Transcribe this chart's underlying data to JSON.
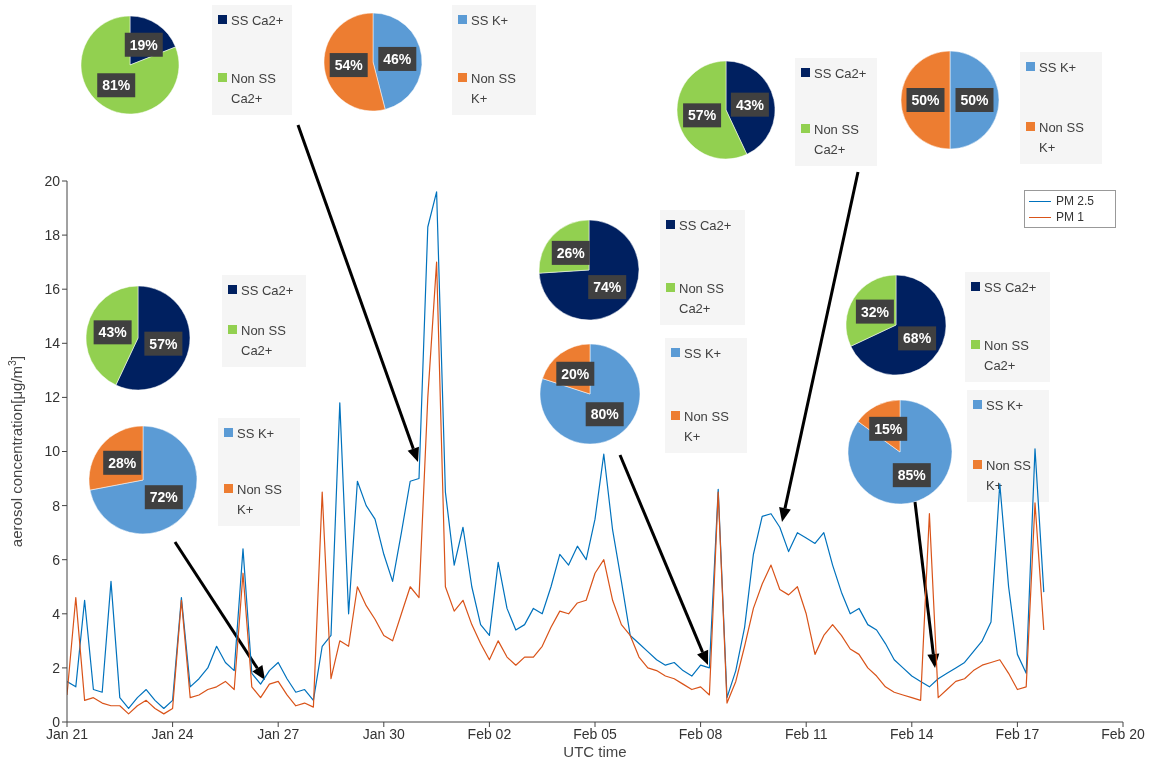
{
  "chart_data": [
    {
      "type": "line",
      "xlabel": "UTC time",
      "ylabel": "aerosol concentration[μg/m$^{3}$]",
      "legend": "top right",
      "xlim": [
        "--01-21",
        "--02-20"
      ],
      "xticks": [
        {
          "value": "--01-21",
          "label": "Jan 21"
        },
        {
          "value": "--01-24",
          "label": "Jan 24"
        },
        {
          "value": "--01-27",
          "label": "Jan 27"
        },
        {
          "value": "--01-30",
          "label": "Jan 30"
        },
        {
          "value": "--02-02",
          "label": "Feb 02"
        },
        {
          "value": "--02-05",
          "label": "Feb 05"
        },
        {
          "value": "--02-08",
          "label": "Feb 08"
        },
        {
          "value": "--02-11",
          "label": "Feb 11"
        },
        {
          "value": "--02-14",
          "label": "Feb 14"
        },
        {
          "value": "--02-17",
          "label": "Feb 17"
        },
        {
          "value": "--02-20",
          "label": "Feb 20"
        }
      ],
      "ylim": [
        0,
        20
      ],
      "yticks": [
        0,
        2,
        4,
        6,
        8,
        10,
        12,
        14,
        16,
        18,
        20
      ],
      "x": [
        "--01-21T00:00",
        "--01-21T06:00",
        "--01-21T12:00",
        "--01-21T18:00",
        "--01-22T00:00",
        "--01-22T06:00",
        "--01-22T12:00",
        "--01-22T18:00",
        "--01-23T00:00",
        "--01-23T06:00",
        "--01-23T12:00",
        "--01-23T18:00",
        "--01-24T00:00",
        "--01-24T06:00",
        "--01-24T12:00",
        "--01-24T18:00",
        "--01-25T00:00",
        "--01-25T06:00",
        "--01-25T12:00",
        "--01-25T18:00",
        "--01-26T00:00",
        "--01-26T06:00",
        "--01-26T12:00",
        "--01-26T18:00",
        "--01-27T00:00",
        "--01-27T06:00",
        "--01-27T12:00",
        "--01-27T18:00",
        "--01-28T00:00",
        "--01-28T06:00",
        "--01-28T12:00",
        "--01-28T18:00",
        "--01-29T00:00",
        "--01-29T06:00",
        "--01-29T12:00",
        "--01-29T18:00",
        "--01-30T00:00",
        "--01-30T06:00",
        "--01-30T12:00",
        "--01-30T18:00",
        "--01-31T00:00",
        "--01-31T06:00",
        "--01-31T12:00",
        "--01-31T18:00",
        "--02-01T00:00",
        "--02-01T06:00",
        "--02-01T12:00",
        "--02-01T18:00",
        "--02-02T00:00",
        "--02-02T06:00",
        "--02-02T12:00",
        "--02-02T18:00",
        "--02-03T00:00",
        "--02-03T06:00",
        "--02-03T12:00",
        "--02-03T18:00",
        "--02-04T00:00",
        "--02-04T06:00",
        "--02-04T12:00",
        "--02-04T18:00",
        "--02-05T00:00",
        "--02-05T06:00",
        "--02-05T12:00",
        "--02-05T18:00",
        "--02-06T00:00",
        "--02-06T06:00",
        "--02-06T12:00",
        "--02-06T18:00",
        "--02-07T00:00",
        "--02-07T06:00",
        "--02-07T12:00",
        "--02-07T18:00",
        "--02-08T00:00",
        "--02-08T06:00",
        "--02-08T12:00",
        "--02-08T18:00",
        "--02-09T00:00",
        "--02-09T06:00",
        "--02-09T12:00",
        "--02-09T18:00",
        "--02-10T00:00",
        "--02-10T06:00",
        "--02-10T12:00",
        "--02-10T18:00",
        "--02-11T00:00",
        "--02-11T06:00",
        "--02-11T12:00",
        "--02-11T18:00",
        "--02-12T00:00",
        "--02-12T06:00",
        "--02-12T12:00",
        "--02-12T18:00",
        "--02-13T00:00",
        "--02-13T06:00",
        "--02-13T12:00",
        "--02-13T18:00",
        "--02-14T00:00",
        "--02-14T06:00",
        "--02-14T12:00",
        "--02-14T18:00",
        "--02-15T00:00",
        "--02-15T06:00",
        "--02-15T12:00",
        "--02-15T18:00",
        "--02-16T00:00",
        "--02-16T06:00",
        "--02-16T12:00",
        "--02-16T18:00",
        "--02-17T00:00",
        "--02-17T06:00",
        "--02-17T12:00",
        "--02-17T18:00"
      ],
      "series": [
        {
          "name": "PM 2.5",
          "color": "#0072bd",
          "values": [
            1.5,
            1.3,
            4.5,
            1.2,
            1.1,
            5.2,
            0.9,
            0.5,
            0.9,
            1.2,
            0.8,
            0.5,
            0.8,
            4.6,
            1.3,
            1.6,
            2.0,
            2.8,
            2.2,
            1.9,
            6.4,
            1.8,
            1.4,
            1.9,
            2.2,
            1.6,
            1.1,
            1.2,
            0.8,
            2.8,
            3.2,
            11.8,
            4.0,
            8.9,
            8.0,
            7.5,
            6.2,
            5.2,
            7.0,
            8.9,
            9.0,
            18.3,
            19.6,
            8.5,
            5.8,
            7.2,
            5.0,
            3.6,
            3.2,
            5.9,
            4.2,
            3.4,
            3.6,
            4.2,
            4.0,
            5.0,
            6.2,
            5.8,
            6.5,
            6.0,
            7.5,
            9.9,
            7.1,
            5.2,
            3.2,
            2.9,
            2.6,
            2.3,
            2.1,
            2.2,
            1.9,
            1.7,
            2.1,
            2.0,
            8.6,
            0.9,
            1.9,
            3.5,
            6.2,
            7.6,
            7.7,
            7.2,
            6.3,
            7.0,
            6.8,
            6.6,
            7.0,
            5.8,
            4.8,
            4.0,
            4.2,
            3.6,
            3.4,
            2.9,
            2.3,
            2.0,
            1.7,
            1.5,
            1.3,
            1.6,
            1.8,
            2.0,
            2.2,
            2.6,
            3.0,
            3.7,
            8.8,
            5.0,
            2.5,
            1.8,
            10.1,
            4.8
          ]
        },
        {
          "name": "PM 1",
          "color": "#d95319",
          "values": [
            1.0,
            4.6,
            0.8,
            0.9,
            0.7,
            0.6,
            0.6,
            0.3,
            0.6,
            0.8,
            0.5,
            0.3,
            0.5,
            4.5,
            0.9,
            1.0,
            1.2,
            1.3,
            1.5,
            1.2,
            5.5,
            1.3,
            0.9,
            1.4,
            1.5,
            1.0,
            0.6,
            0.7,
            0.55,
            8.5,
            1.6,
            3.0,
            2.8,
            5.0,
            4.3,
            3.8,
            3.2,
            3.0,
            4.0,
            5.0,
            4.6,
            12.0,
            17.0,
            5.0,
            4.1,
            4.5,
            3.6,
            2.9,
            2.3,
            3.0,
            2.4,
            2.1,
            2.4,
            2.4,
            2.8,
            3.5,
            4.1,
            4.0,
            4.4,
            4.5,
            5.5,
            6.0,
            4.5,
            3.6,
            3.2,
            2.4,
            2.0,
            1.9,
            1.7,
            1.6,
            1.4,
            1.2,
            1.3,
            1.0,
            8.5,
            0.7,
            1.5,
            2.8,
            4.2,
            5.1,
            5.8,
            4.9,
            4.7,
            5.0,
            4.0,
            2.5,
            3.2,
            3.6,
            3.2,
            2.7,
            2.5,
            2.0,
            1.7,
            1.3,
            1.1,
            1.0,
            0.9,
            0.8,
            7.7,
            0.9,
            1.2,
            1.5,
            1.6,
            1.9,
            2.1,
            2.2,
            2.3,
            1.8,
            1.2,
            1.3,
            8.1,
            3.4
          ]
        }
      ]
    },
    {
      "type": "pie",
      "categories": [
        "SS Ca2+",
        "Non SS Ca2+"
      ],
      "values": [
        19,
        81
      ],
      "colors": [
        "#002060",
        "#92d050"
      ],
      "value_labels": [
        "19%",
        "81%"
      ],
      "legend": "right"
    },
    {
      "type": "pie",
      "categories": [
        "SS K+",
        "Non SS K+"
      ],
      "values": [
        46,
        54
      ],
      "colors": [
        "#5b9bd5",
        "#ed7d31"
      ],
      "value_labels": [
        "46%",
        "54%"
      ],
      "legend": "right"
    },
    {
      "type": "pie",
      "categories": [
        "SS Ca2+",
        "Non SS Ca2+"
      ],
      "values": [
        43,
        57
      ],
      "colors": [
        "#002060",
        "#92d050"
      ],
      "value_labels": [
        "43%",
        "57%"
      ],
      "legend": "right"
    },
    {
      "type": "pie",
      "categories": [
        "SS K+",
        "Non SS K+"
      ],
      "values": [
        50,
        50
      ],
      "colors": [
        "#5b9bd5",
        "#ed7d31"
      ],
      "value_labels": [
        "50%",
        "50%"
      ],
      "legend": "right"
    },
    {
      "type": "pie",
      "categories": [
        "SS Ca2+",
        "Non SS Ca2+"
      ],
      "values": [
        57,
        43
      ],
      "colors": [
        "#002060",
        "#92d050"
      ],
      "value_labels": [
        "57%",
        "43%"
      ],
      "legend": "right"
    },
    {
      "type": "pie",
      "categories": [
        "SS K+",
        "Non SS K+"
      ],
      "values": [
        72,
        28
      ],
      "colors": [
        "#5b9bd5",
        "#ed7d31"
      ],
      "value_labels": [
        "72%",
        "28%"
      ],
      "legend": "right"
    },
    {
      "type": "pie",
      "categories": [
        "SS Ca2+",
        "Non SS Ca2+"
      ],
      "values": [
        74,
        26
      ],
      "colors": [
        "#002060",
        "#92d050"
      ],
      "value_labels": [
        "74%",
        "26%"
      ],
      "legend": "right"
    },
    {
      "type": "pie",
      "categories": [
        "SS K+",
        "Non SS K+"
      ],
      "values": [
        80,
        20
      ],
      "colors": [
        "#5b9bd5",
        "#ed7d31"
      ],
      "value_labels": [
        "80%",
        "20%"
      ],
      "legend": "right"
    },
    {
      "type": "pie",
      "categories": [
        "SS Ca2+",
        "Non SS Ca2+"
      ],
      "values": [
        68,
        32
      ],
      "colors": [
        "#002060",
        "#92d050"
      ],
      "value_labels": [
        "68%",
        "32%"
      ],
      "legend": "right"
    },
    {
      "type": "pie",
      "categories": [
        "SS K+",
        "Non SS K+"
      ],
      "values": [
        85,
        15
      ],
      "colors": [
        "#5b9bd5",
        "#ed7d31"
      ],
      "value_labels": [
        "85%",
        "15%"
      ],
      "legend": "right"
    }
  ]
}
